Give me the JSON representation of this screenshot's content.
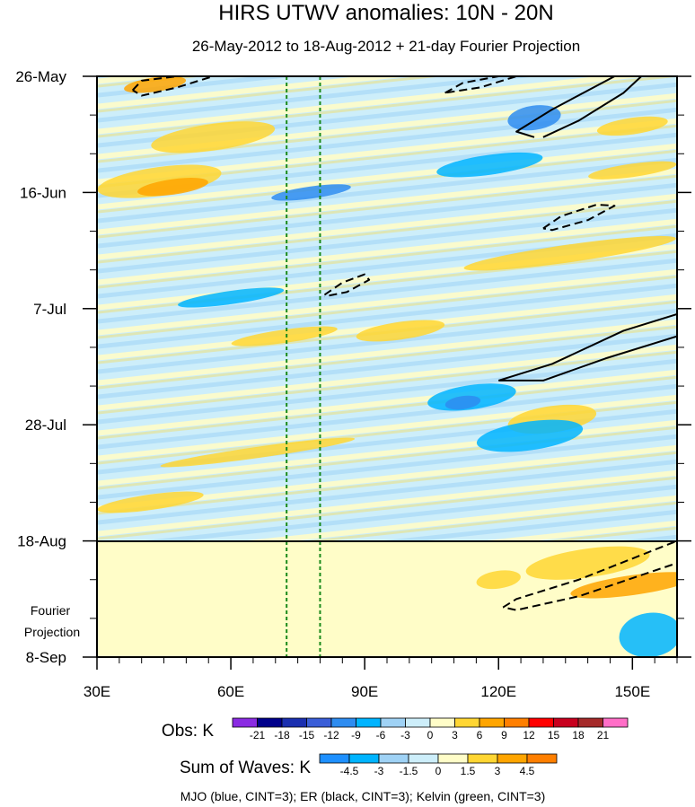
{
  "chart_data": {
    "type": "heatmap",
    "title": "HIRS UTWV anomalies: 10N - 20N",
    "subtitle": "26-May-2012 to 18-Aug-2012 + 21-day Fourier Projection",
    "xlabel": "",
    "ylabel": "",
    "x_ticks": [
      "30E",
      "60E",
      "90E",
      "120E",
      "150E"
    ],
    "x_tick_values": [
      30,
      60,
      90,
      120,
      150
    ],
    "xlim": [
      30,
      160
    ],
    "y_ticks": [
      "26-May",
      "16-Jun",
      "7-Jul",
      "28-Jul",
      "18-Aug",
      "8-Sep"
    ],
    "y_tick_days": [
      0,
      21,
      42,
      63,
      84,
      105
    ],
    "ylim_days": [
      0,
      105
    ],
    "projection_start_day": 84,
    "projection_label": "Fourier Projection",
    "projection_label_lines": [
      "Fourier",
      "Projection"
    ],
    "kelvin_lines_lon": [
      72.5,
      80
    ],
    "obs_colorbar": {
      "label": "Obs: K",
      "levels": [
        "-21",
        "-18",
        "-15",
        "-12",
        "-9",
        "-6",
        "-3",
        "0",
        "3",
        "6",
        "9",
        "12",
        "15",
        "18",
        "21"
      ],
      "colors": [
        "#8a2be2",
        "#00008b",
        "#1a2fb0",
        "#3a5ed8",
        "#2e8cf0",
        "#00b4ff",
        "#9fd2f5",
        "#cdeefa",
        "#fffdc8",
        "#ffd633",
        "#ffa500",
        "#ff7f00",
        "#ff0000",
        "#c8001e",
        "#a52a2a",
        "#ff6ec7"
      ]
    },
    "waves_colorbar": {
      "label": "Sum of Waves: K",
      "levels": [
        "-4.5",
        "-3",
        "-1.5",
        "0",
        "1.5",
        "3",
        "4.5"
      ],
      "colors": [
        "#1e90ff",
        "#00b4ff",
        "#9fd2f5",
        "#cdeefa",
        "#fffdc8",
        "#ffd633",
        "#ffa500",
        "#ff7f00"
      ]
    },
    "footer": "MJO (blue, CINT=3); ER (black, CINT=3); Kelvin (green, CINT=3)",
    "anomaly_blobs": [
      {
        "lon": 43,
        "day": 1.5,
        "rlon": 7,
        "rday": 1.3,
        "level": "warm2"
      },
      {
        "lon": 56,
        "day": 11,
        "rlon": 14,
        "rday": 2.4,
        "level": "warm1"
      },
      {
        "lon": 44,
        "day": 19,
        "rlon": 14,
        "rday": 2.6,
        "level": "warm1"
      },
      {
        "lon": 47,
        "day": 20,
        "rlon": 8,
        "rday": 1.4,
        "level": "warm2"
      },
      {
        "lon": 128,
        "day": 7.5,
        "rlon": 6,
        "rday": 2.2,
        "level": "cool2"
      },
      {
        "lon": 118,
        "day": 16,
        "rlon": 12,
        "rday": 1.8,
        "level": "cool1"
      },
      {
        "lon": 78,
        "day": 21,
        "rlon": 9,
        "rday": 1.1,
        "level": "cool2"
      },
      {
        "lon": 150,
        "day": 9,
        "rlon": 8,
        "rday": 1.5,
        "level": "warm1"
      },
      {
        "lon": 150,
        "day": 17,
        "rlon": 10,
        "rday": 1.2,
        "level": "warm1"
      },
      {
        "lon": 136,
        "day": 32,
        "rlon": 24,
        "rday": 1.6,
        "level": "warm1"
      },
      {
        "lon": 98,
        "day": 46,
        "rlon": 10,
        "rday": 1.6,
        "level": "warm1"
      },
      {
        "lon": 72,
        "day": 47,
        "rlon": 12,
        "rday": 1.2,
        "level": "warm1"
      },
      {
        "lon": 114,
        "day": 58,
        "rlon": 10,
        "rday": 2.2,
        "level": "cool1"
      },
      {
        "lon": 112,
        "day": 59,
        "rlon": 4,
        "rday": 1.2,
        "level": "cool2"
      },
      {
        "lon": 132,
        "day": 62,
        "rlon": 10,
        "rday": 2.4,
        "level": "warm1"
      },
      {
        "lon": 127,
        "day": 65,
        "rlon": 12,
        "rday": 2.6,
        "level": "cool1"
      },
      {
        "lon": 66,
        "day": 68,
        "rlon": 22,
        "rday": 1.0,
        "level": "warm1"
      },
      {
        "lon": 42,
        "day": 77,
        "rlon": 12,
        "rday": 1.4,
        "level": "warm1"
      },
      {
        "lon": 60,
        "day": 40,
        "rlon": 12,
        "rday": 1.2,
        "level": "cool1"
      },
      {
        "lon": 140,
        "day": 88,
        "rlon": 14,
        "rday": 2.6,
        "level": "warm1"
      },
      {
        "lon": 150,
        "day": 92,
        "rlon": 14,
        "rday": 1.8,
        "level": "warm2"
      },
      {
        "lon": 120,
        "day": 91,
        "rlon": 5,
        "rday": 1.6,
        "level": "warm1"
      },
      {
        "lon": 154,
        "day": 101,
        "rlon": 7,
        "rday": 4,
        "level": "cool1"
      }
    ],
    "er_contours": [
      {
        "style": "solid",
        "points": [
          [
            128,
            11
          ],
          [
            124,
            10
          ],
          [
            132,
            6
          ],
          [
            146,
            0
          ],
          [
            152,
            0
          ],
          [
            148,
            3
          ],
          [
            138,
            8
          ],
          [
            130,
            11
          ]
        ]
      },
      {
        "style": "solid",
        "points": [
          [
            120,
            55
          ],
          [
            132,
            52
          ],
          [
            148,
            46
          ],
          [
            160,
            43
          ],
          [
            160,
            47
          ],
          [
            144,
            51
          ],
          [
            130,
            55
          ],
          [
            120,
            55
          ]
        ]
      },
      {
        "style": "dashed",
        "points": [
          [
            38,
            2.5
          ],
          [
            40,
            0.8
          ],
          [
            48,
            0
          ],
          [
            56,
            0
          ],
          [
            48,
            2
          ],
          [
            40,
            3.5
          ],
          [
            38,
            2.5
          ]
        ]
      },
      {
        "style": "dashed",
        "points": [
          [
            108,
            3
          ],
          [
            112,
            1.2
          ],
          [
            120,
            0
          ],
          [
            124,
            0
          ],
          [
            116,
            2
          ],
          [
            108,
            3
          ]
        ]
      },
      {
        "style": "dashed",
        "points": [
          [
            130,
            27.5
          ],
          [
            134,
            25.3
          ],
          [
            142,
            23.2
          ],
          [
            146,
            23.4
          ],
          [
            140,
            26
          ],
          [
            132,
            27.8
          ],
          [
            130,
            27.5
          ]
        ]
      },
      {
        "style": "dashed",
        "points": [
          [
            81,
            39.5
          ],
          [
            85,
            37.3
          ],
          [
            90,
            35.8
          ],
          [
            91,
            36.8
          ],
          [
            86,
            39
          ],
          [
            81,
            39.8
          ]
        ]
      },
      {
        "style": "dashed",
        "points": [
          [
            121,
            96
          ],
          [
            124,
            94.5
          ],
          [
            138,
            91
          ],
          [
            160,
            84
          ],
          [
            160,
            88
          ],
          [
            138,
            94
          ],
          [
            124,
            96.5
          ],
          [
            121,
            96
          ]
        ]
      }
    ]
  }
}
